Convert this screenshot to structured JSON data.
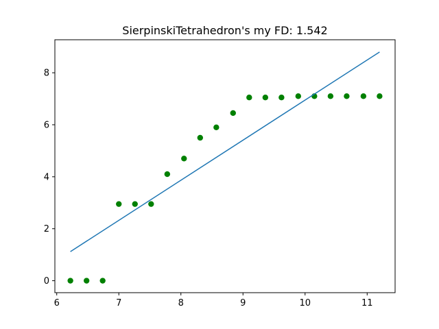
{
  "chart_data": {
    "type": "scatter",
    "title": "SierpinskiTetrahedron's my FD: 1.542",
    "xlabel": "",
    "ylabel": "",
    "xlim": [
      5.97,
      11.45
    ],
    "ylim": [
      -0.46,
      9.27
    ],
    "xticks": [
      6,
      7,
      8,
      9,
      10,
      11
    ],
    "yticks": [
      0,
      2,
      4,
      6,
      8
    ],
    "grid": false,
    "series": [
      {
        "kind": "points",
        "color": "#008000",
        "x": [
          6.22,
          6.48,
          6.74,
          7.0,
          7.26,
          7.52,
          7.78,
          8.05,
          8.31,
          8.57,
          8.84,
          9.1,
          9.36,
          9.62,
          9.89,
          10.15,
          10.41,
          10.67,
          10.94,
          11.2
        ],
        "y": [
          0.0,
          0.0,
          0.0,
          2.95,
          2.95,
          2.95,
          4.1,
          4.7,
          5.5,
          5.9,
          6.45,
          7.05,
          7.05,
          7.05,
          7.1,
          7.1,
          7.1,
          7.1,
          7.1,
          7.1
        ]
      },
      {
        "kind": "line",
        "color": "#1f77b4",
        "x": [
          6.22,
          11.2
        ],
        "y": [
          1.12,
          8.8
        ]
      }
    ]
  }
}
